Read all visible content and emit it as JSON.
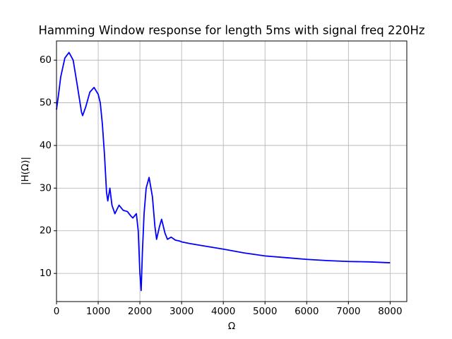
{
  "chart_data": {
    "type": "line",
    "title": "Hamming Window response for length 5ms with signal freq 220Hz",
    "x_label": "Ω",
    "y_label": "|H(Ω)|",
    "x": [
      0,
      50,
      100,
      200,
      300,
      400,
      500,
      600,
      627,
      700,
      800,
      900,
      1000,
      1050,
      1100,
      1150,
      1200,
      1230,
      1280,
      1330,
      1400,
      1500,
      1600,
      1700,
      1780,
      1830,
      1915,
      1960,
      2000,
      2030,
      2060,
      2100,
      2150,
      2220,
      2300,
      2360,
      2400,
      2470,
      2520,
      2600,
      2660,
      2750,
      2850,
      2950,
      3000,
      3200,
      3500,
      4000,
      4500,
      5000,
      5500,
      6000,
      6500,
      7000,
      7500,
      8000
    ],
    "series": [
      {
        "name": "|H(Ω)|",
        "color": "#0000ff",
        "values": [
          48.4,
          52,
          56,
          60.5,
          61.8,
          60,
          54,
          47.8,
          47,
          49,
          52.5,
          53.6,
          52,
          50,
          45,
          38,
          29,
          27,
          30,
          26,
          24,
          26,
          24.8,
          24.5,
          23.5,
          23,
          24,
          20,
          10,
          6,
          15,
          24,
          30,
          32.5,
          28,
          21,
          18,
          21,
          22.7,
          19.5,
          18,
          18.5,
          17.8,
          17.6,
          17.4,
          17,
          16.5,
          15.7,
          14.8,
          14.1,
          13.7,
          13.3,
          13,
          12.8,
          12.7,
          12.5
        ]
      }
    ],
    "xlim": [
      0,
      8400
    ],
    "ylim": [
      3.4,
      64.5
    ],
    "xticks": [
      0,
      1000,
      2000,
      3000,
      4000,
      5000,
      6000,
      7000,
      8000
    ],
    "yticks": [
      10,
      20,
      30,
      40,
      50,
      60
    ],
    "grid": true
  }
}
